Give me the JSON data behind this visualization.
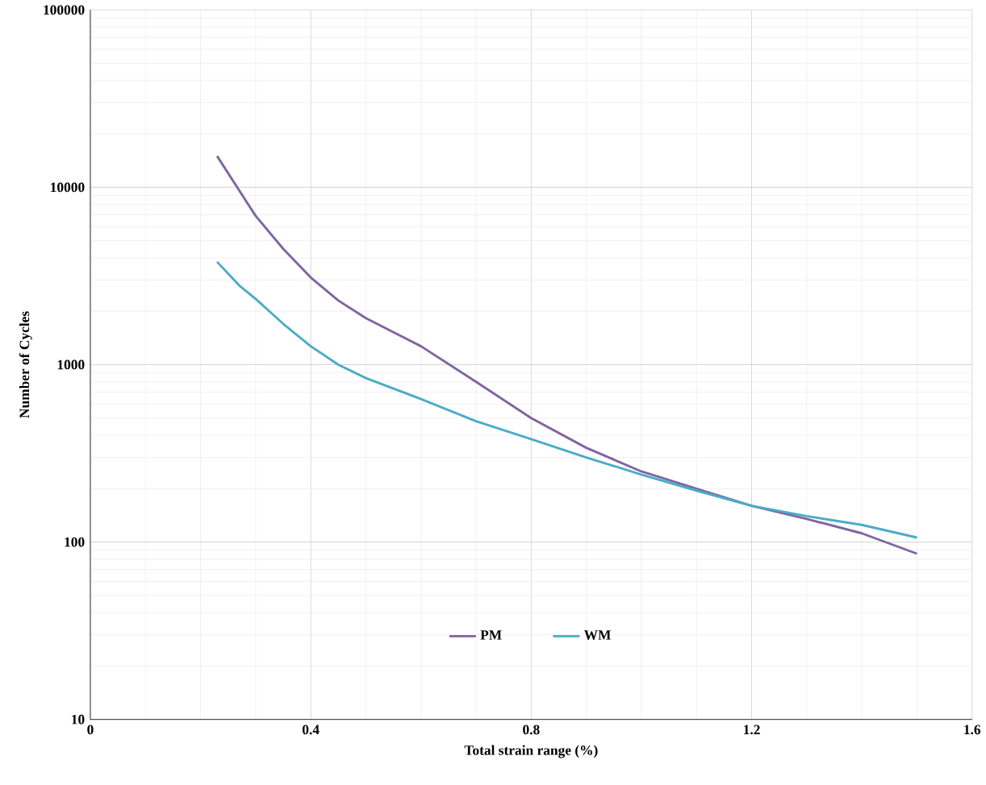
{
  "chart_data": {
    "type": "line",
    "xlabel": "Total strain range (%)",
    "ylabel": "Number of Cycles",
    "log": "y",
    "grid": true,
    "legend": "bottom",
    "marker": "none",
    "line_style": "solid",
    "xlim": [
      0,
      1.6
    ],
    "xticks": [
      0,
      0.4,
      0.8,
      1.2,
      1.6
    ],
    "ylim": [
      10,
      100000
    ],
    "yticks": [
      10,
      100,
      1000,
      10000,
      100000
    ],
    "series": [
      {
        "name": "PM",
        "color": "#8064a2",
        "x": [
          0.23,
          0.28,
          0.3,
          0.35,
          0.4,
          0.45,
          0.5,
          0.6,
          0.7,
          0.8,
          0.9,
          1.0,
          1.1,
          1.2,
          1.3,
          1.4,
          1.5
        ],
        "values": [
          15000,
          8600,
          6900,
          4500,
          3100,
          2300,
          1830,
          1270,
          800,
          500,
          340,
          250,
          200,
          160,
          135,
          112,
          86
        ]
      },
      {
        "name": "WM",
        "color": "#4bacc6",
        "x": [
          0.23,
          0.27,
          0.3,
          0.35,
          0.4,
          0.45,
          0.5,
          0.6,
          0.7,
          0.8,
          0.9,
          1.0,
          1.1,
          1.2,
          1.3,
          1.4,
          1.5
        ],
        "values": [
          3800,
          2800,
          2350,
          1700,
          1270,
          1000,
          840,
          640,
          480,
          380,
          300,
          240,
          195,
          160,
          140,
          125,
          106
        ]
      }
    ]
  }
}
